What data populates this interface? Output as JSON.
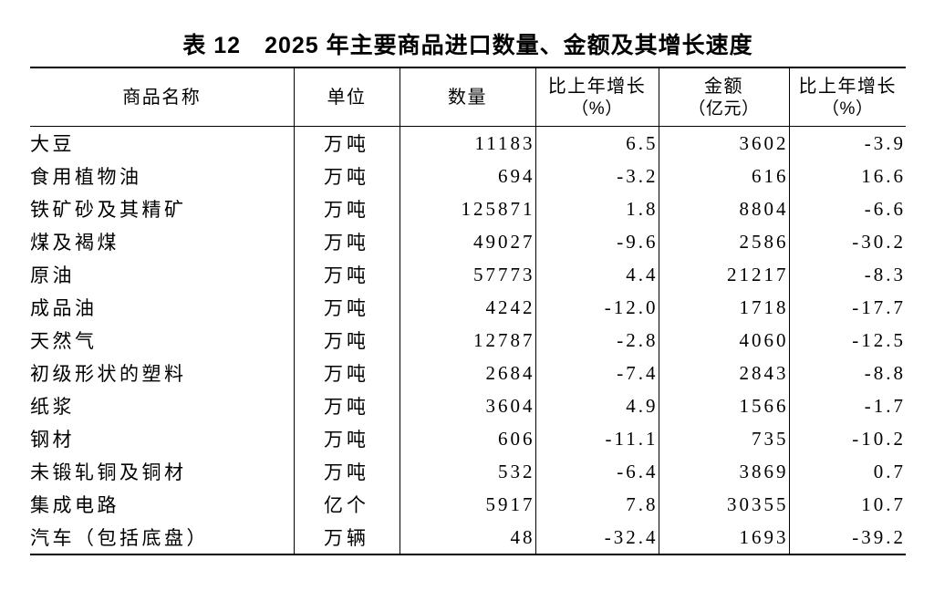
{
  "title": "表 12　2025 年主要商品进口数量、金额及其增长速度",
  "colors": {
    "text": "#000000",
    "background": "#ffffff",
    "rule": "#000000"
  },
  "table": {
    "headers": [
      {
        "label": "商品名称",
        "sub": ""
      },
      {
        "label": "单位",
        "sub": ""
      },
      {
        "label": "数量",
        "sub": ""
      },
      {
        "label": "比上年增长",
        "sub": "（%）"
      },
      {
        "label": "金额",
        "sub": "（亿元）"
      },
      {
        "label": "比上年增长",
        "sub": "（%）"
      }
    ],
    "rows": [
      [
        "大豆",
        "万吨",
        "11183",
        "6.5",
        "3602",
        "-3.9"
      ],
      [
        "食用植物油",
        "万吨",
        "694",
        "-3.2",
        "616",
        "16.6"
      ],
      [
        "铁矿砂及其精矿",
        "万吨",
        "125871",
        "1.8",
        "8804",
        "-6.6"
      ],
      [
        "煤及褐煤",
        "万吨",
        "49027",
        "-9.6",
        "2586",
        "-30.2"
      ],
      [
        "原油",
        "万吨",
        "57773",
        "4.4",
        "21217",
        "-8.3"
      ],
      [
        "成品油",
        "万吨",
        "4242",
        "-12.0",
        "1718",
        "-17.7"
      ],
      [
        "天然气",
        "万吨",
        "12787",
        "-2.8",
        "4060",
        "-12.5"
      ],
      [
        "初级形状的塑料",
        "万吨",
        "2684",
        "-7.4",
        "2843",
        "-8.8"
      ],
      [
        "纸浆",
        "万吨",
        "3604",
        "4.9",
        "1566",
        "-1.7"
      ],
      [
        "钢材",
        "万吨",
        "606",
        "-11.1",
        "735",
        "-10.2"
      ],
      [
        "未锻轧铜及铜材",
        "万吨",
        "532",
        "-6.4",
        "3869",
        "0.7"
      ],
      [
        "集成电路",
        "亿个",
        "5917",
        "7.8",
        "30355",
        "10.7"
      ],
      [
        "汽车（包括底盘）",
        "万辆",
        "48",
        "-32.4",
        "1693",
        "-39.2"
      ]
    ]
  }
}
